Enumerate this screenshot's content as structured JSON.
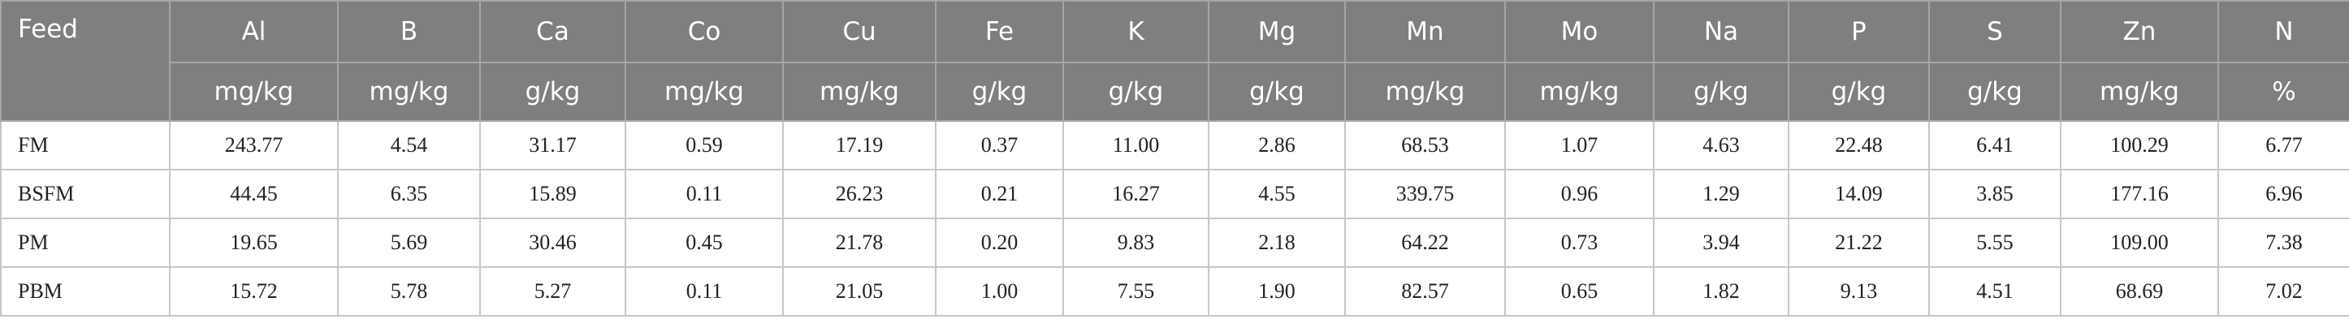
{
  "table": {
    "columns": [
      "Feed",
      "Al",
      "B",
      "Ca",
      "Co",
      "Cu",
      "Fe",
      "K",
      "Mg",
      "Mn",
      "Mo",
      "Na",
      "P",
      "S",
      "Zn",
      "N"
    ],
    "units": [
      "mg/kg",
      "mg/kg",
      "g/kg",
      "mg/kg",
      "mg/kg",
      "g/kg",
      "g/kg",
      "g/kg",
      "mg/kg",
      "mg/kg",
      "g/kg",
      "g/kg",
      "g/kg",
      "mg/kg",
      "%"
    ],
    "rows": [
      [
        "FM",
        "243.77",
        "4.54",
        "31.17",
        "0.59",
        "17.19",
        "0.37",
        "11.00",
        "2.86",
        "68.53",
        "1.07",
        "4.63",
        "22.48",
        "6.41",
        "100.29",
        "6.77"
      ],
      [
        "BSFM",
        "44.45",
        "6.35",
        "15.89",
        "0.11",
        "26.23",
        "0.21",
        "16.27",
        "4.55",
        "339.75",
        "0.96",
        "1.29",
        "14.09",
        "3.85",
        "177.16",
        "6.96"
      ],
      [
        "PM",
        "19.65",
        "5.69",
        "30.46",
        "0.45",
        "21.78",
        "0.20",
        "9.83",
        "2.18",
        "64.22",
        "0.73",
        "3.94",
        "21.22",
        "5.55",
        "109.00",
        "7.38"
      ],
      [
        "PBM",
        "15.72",
        "5.78",
        "5.27",
        "0.11",
        "21.05",
        "1.00",
        "7.55",
        "1.90",
        "82.57",
        "0.65",
        "1.82",
        "9.13",
        "4.51",
        "68.69",
        "7.02"
      ]
    ]
  }
}
